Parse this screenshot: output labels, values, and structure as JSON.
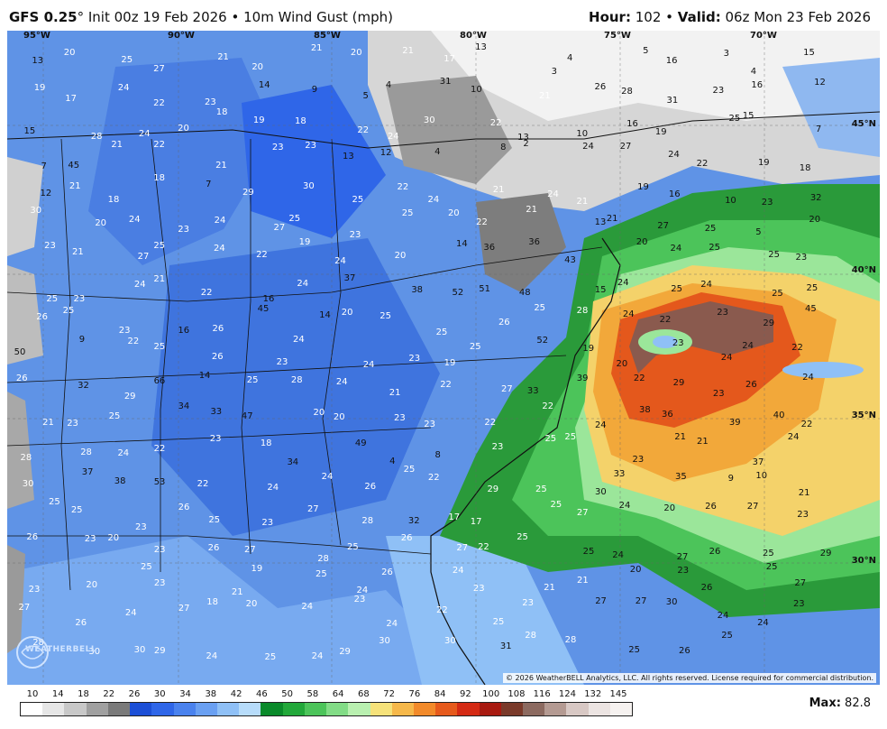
{
  "header": {
    "model": "GFS 0.25",
    "degree": "°",
    "init": "Init 00z 19 Feb 2026",
    "bullet": "•",
    "product": "10m Wind Gust (mph)",
    "hour_label": "Hour:",
    "hour_value": "102",
    "valid_label": "Valid:",
    "valid_value": "06z Mon 23 Feb 2026"
  },
  "grid_labels": {
    "lon_95": "95°W",
    "lon_90": "90°W",
    "lon_85": "85°W",
    "lon_80": "80°W",
    "lon_75": "75°W",
    "lon_70": "70°W",
    "lat_45": "45°N",
    "lat_40": "40°N",
    "lat_35": "35°N",
    "lat_30": "30°N"
  },
  "copyright": "© 2026 WeatherBELL Analytics, LLC. All rights reserved. License required for commercial distribution.",
  "logo_text": "WEATHERBELL",
  "colorbar": {
    "ticks": [
      "10",
      "14",
      "18",
      "22",
      "26",
      "30",
      "34",
      "38",
      "42",
      "46",
      "50",
      "58",
      "64",
      "68",
      "72",
      "76",
      "84",
      "92",
      "100",
      "108",
      "116",
      "124",
      "132",
      "145"
    ],
    "colors": [
      "#ffffff",
      "#e6e6e6",
      "#c8c8c8",
      "#a0a0a0",
      "#7a7a7a",
      "#1c4fd6",
      "#2f66e8",
      "#4a82ee",
      "#6aa0f2",
      "#8fc0f6",
      "#b7dcfa",
      "#0a8a2a",
      "#22a83a",
      "#4cc45a",
      "#82dc86",
      "#b9f0b0",
      "#f6e27a",
      "#f6b84a",
      "#f28a2a",
      "#e65a1c",
      "#d42a14",
      "#a81a10",
      "#7a3a2a",
      "#8c6a60",
      "#b49a92",
      "#d8c8c4",
      "#ece4e2",
      "#f6f2f0"
    ],
    "max_label": "Max:",
    "max_value": "82.8"
  },
  "map_values": [
    {
      "v": "13"
    },
    {
      "v": "20"
    },
    {
      "v": "25"
    },
    {
      "v": "27"
    },
    {
      "v": "21"
    },
    {
      "v": "20"
    },
    {
      "v": "21"
    },
    {
      "v": "20"
    },
    {
      "v": "21"
    },
    {
      "v": "17"
    },
    {
      "v": "13"
    },
    {
      "v": "3"
    },
    {
      "v": "4"
    },
    {
      "v": "5"
    },
    {
      "v": "16"
    },
    {
      "v": "3"
    },
    {
      "v": "4"
    },
    {
      "v": "15"
    },
    {
      "v": "19"
    },
    {
      "v": "17"
    },
    {
      "v": "24"
    },
    {
      "v": "22"
    },
    {
      "v": "23"
    },
    {
      "v": "14"
    },
    {
      "v": "9"
    },
    {
      "v": "5"
    },
    {
      "v": "4"
    },
    {
      "v": "31"
    },
    {
      "v": "10"
    },
    {
      "v": "21"
    },
    {
      "v": "26"
    },
    {
      "v": "28"
    },
    {
      "v": "31"
    },
    {
      "v": "23"
    },
    {
      "v": "16"
    },
    {
      "v": "12"
    },
    {
      "v": "15"
    },
    {
      "v": "28"
    },
    {
      "v": "24"
    },
    {
      "v": "20"
    },
    {
      "v": "18"
    },
    {
      "v": "19"
    },
    {
      "v": "18"
    },
    {
      "v": "22"
    },
    {
      "v": "24"
    },
    {
      "v": "30"
    },
    {
      "v": "22"
    },
    {
      "v": "13"
    },
    {
      "v": "10"
    },
    {
      "v": "16"
    },
    {
      "v": "19"
    },
    {
      "v": "25"
    },
    {
      "v": "15"
    },
    {
      "v": "7"
    },
    {
      "v": "7"
    },
    {
      "v": "45"
    },
    {
      "v": "21"
    },
    {
      "v": "22"
    },
    {
      "v": "21"
    },
    {
      "v": "23"
    },
    {
      "v": "23"
    },
    {
      "v": "13"
    },
    {
      "v": "12"
    },
    {
      "v": "4"
    },
    {
      "v": "8"
    },
    {
      "v": "2"
    },
    {
      "v": "24"
    },
    {
      "v": "27"
    },
    {
      "v": "24"
    },
    {
      "v": "22"
    },
    {
      "v": "19"
    },
    {
      "v": "18"
    },
    {
      "v": "12"
    },
    {
      "v": "21"
    },
    {
      "v": "18"
    },
    {
      "v": "18"
    },
    {
      "v": "7"
    },
    {
      "v": "29"
    },
    {
      "v": "30"
    },
    {
      "v": "25"
    },
    {
      "v": "22"
    },
    {
      "v": "24"
    },
    {
      "v": "21"
    },
    {
      "v": "24"
    },
    {
      "v": "21"
    },
    {
      "v": "19"
    },
    {
      "v": "16"
    },
    {
      "v": "10"
    },
    {
      "v": "23"
    },
    {
      "v": "32"
    },
    {
      "v": "30"
    },
    {
      "v": "20"
    },
    {
      "v": "24"
    },
    {
      "v": "23"
    },
    {
      "v": "24"
    },
    {
      "v": "27"
    },
    {
      "v": "25"
    },
    {
      "v": "23"
    },
    {
      "v": "25"
    },
    {
      "v": "20"
    },
    {
      "v": "22"
    },
    {
      "v": "21"
    },
    {
      "v": "13"
    },
    {
      "v": "21"
    },
    {
      "v": "27"
    },
    {
      "v": "25"
    },
    {
      "v": "5"
    },
    {
      "v": "20"
    },
    {
      "v": "23"
    },
    {
      "v": "21"
    },
    {
      "v": "27"
    },
    {
      "v": "25"
    },
    {
      "v": "24"
    },
    {
      "v": "22"
    },
    {
      "v": "19"
    },
    {
      "v": "24"
    },
    {
      "v": "20"
    },
    {
      "v": "14"
    },
    {
      "v": "36"
    },
    {
      "v": "36"
    },
    {
      "v": "43"
    },
    {
      "v": "20"
    },
    {
      "v": "24"
    },
    {
      "v": "25"
    },
    {
      "v": "25"
    },
    {
      "v": "23"
    },
    {
      "v": "25"
    },
    {
      "v": "23"
    },
    {
      "v": "24"
    },
    {
      "v": "21"
    },
    {
      "v": "22"
    },
    {
      "v": "16"
    },
    {
      "v": "24"
    },
    {
      "v": "37"
    },
    {
      "v": "38"
    },
    {
      "v": "52"
    },
    {
      "v": "51"
    },
    {
      "v": "48"
    },
    {
      "v": "15"
    },
    {
      "v": "24"
    },
    {
      "v": "25"
    },
    {
      "v": "24"
    },
    {
      "v": "25"
    },
    {
      "v": "25"
    },
    {
      "v": "26"
    },
    {
      "v": "25"
    },
    {
      "v": "23"
    },
    {
      "v": "16"
    },
    {
      "v": "26"
    },
    {
      "v": "45"
    },
    {
      "v": "14"
    },
    {
      "v": "20"
    },
    {
      "v": "25"
    },
    {
      "v": "25"
    },
    {
      "v": "26"
    },
    {
      "v": "25"
    },
    {
      "v": "28"
    },
    {
      "v": "24"
    },
    {
      "v": "22"
    },
    {
      "v": "23"
    },
    {
      "v": "29"
    },
    {
      "v": "45"
    },
    {
      "v": "50"
    },
    {
      "v": "9"
    },
    {
      "v": "22"
    },
    {
      "v": "25"
    },
    {
      "v": "26"
    },
    {
      "v": "23"
    },
    {
      "v": "24"
    },
    {
      "v": "24"
    },
    {
      "v": "23"
    },
    {
      "v": "19"
    },
    {
      "v": "25"
    },
    {
      "v": "52"
    },
    {
      "v": "19"
    },
    {
      "v": "20"
    },
    {
      "v": "23"
    },
    {
      "v": "24"
    },
    {
      "v": "24"
    },
    {
      "v": "22"
    },
    {
      "v": "26"
    },
    {
      "v": "32"
    },
    {
      "v": "29"
    },
    {
      "v": "66"
    },
    {
      "v": "14"
    },
    {
      "v": "25"
    },
    {
      "v": "28"
    },
    {
      "v": "24"
    },
    {
      "v": "21"
    },
    {
      "v": "22"
    },
    {
      "v": "27"
    },
    {
      "v": "33"
    },
    {
      "v": "39"
    },
    {
      "v": "22"
    },
    {
      "v": "29"
    },
    {
      "v": "23"
    },
    {
      "v": "26"
    },
    {
      "v": "24"
    },
    {
      "v": "21"
    },
    {
      "v": "23"
    },
    {
      "v": "25"
    },
    {
      "v": "34"
    },
    {
      "v": "33"
    },
    {
      "v": "47"
    },
    {
      "v": "20"
    },
    {
      "v": "20"
    },
    {
      "v": "23"
    },
    {
      "v": "23"
    },
    {
      "v": "22"
    },
    {
      "v": "22"
    },
    {
      "v": "24"
    },
    {
      "v": "38"
    },
    {
      "v": "36"
    },
    {
      "v": "39"
    },
    {
      "v": "40"
    },
    {
      "v": "22"
    },
    {
      "v": "28"
    },
    {
      "v": "28"
    },
    {
      "v": "24"
    },
    {
      "v": "22"
    },
    {
      "v": "23"
    },
    {
      "v": "18"
    },
    {
      "v": "34"
    },
    {
      "v": "49"
    },
    {
      "v": "4"
    },
    {
      "v": "8"
    },
    {
      "v": "23"
    },
    {
      "v": "25"
    },
    {
      "v": "25"
    },
    {
      "v": "23"
    },
    {
      "v": "21"
    },
    {
      "v": "21"
    },
    {
      "v": "37"
    },
    {
      "v": "24"
    },
    {
      "v": "30"
    },
    {
      "v": "37"
    },
    {
      "v": "38"
    },
    {
      "v": "53"
    },
    {
      "v": "22"
    },
    {
      "v": "24"
    },
    {
      "v": "24"
    },
    {
      "v": "26"
    },
    {
      "v": "25"
    },
    {
      "v": "22"
    },
    {
      "v": "29"
    },
    {
      "v": "25"
    },
    {
      "v": "30"
    },
    {
      "v": "33"
    },
    {
      "v": "35"
    },
    {
      "v": "9"
    },
    {
      "v": "10"
    },
    {
      "v": "21"
    },
    {
      "v": "25"
    },
    {
      "v": "25"
    },
    {
      "v": "23"
    },
    {
      "v": "26"
    },
    {
      "v": "25"
    },
    {
      "v": "23"
    },
    {
      "v": "27"
    },
    {
      "v": "28"
    },
    {
      "v": "32"
    },
    {
      "v": "17"
    },
    {
      "v": "17"
    },
    {
      "v": "25"
    },
    {
      "v": "27"
    },
    {
      "v": "24"
    },
    {
      "v": "20"
    },
    {
      "v": "26"
    },
    {
      "v": "27"
    },
    {
      "v": "23"
    },
    {
      "v": "26"
    },
    {
      "v": "23"
    },
    {
      "v": "20"
    },
    {
      "v": "23"
    },
    {
      "v": "26"
    },
    {
      "v": "27"
    },
    {
      "v": "28"
    },
    {
      "v": "25"
    },
    {
      "v": "26"
    },
    {
      "v": "27"
    },
    {
      "v": "22"
    },
    {
      "v": "25"
    },
    {
      "v": "25"
    },
    {
      "v": "24"
    },
    {
      "v": "27"
    },
    {
      "v": "26"
    },
    {
      "v": "25"
    },
    {
      "v": "29"
    },
    {
      "v": "23"
    },
    {
      "v": "20"
    },
    {
      "v": "25"
    },
    {
      "v": "23"
    },
    {
      "v": "21"
    },
    {
      "v": "19"
    },
    {
      "v": "25"
    },
    {
      "v": "24"
    },
    {
      "v": "26"
    },
    {
      "v": "24"
    },
    {
      "v": "23"
    },
    {
      "v": "21"
    },
    {
      "v": "21"
    },
    {
      "v": "20"
    },
    {
      "v": "23"
    },
    {
      "v": "26"
    },
    {
      "v": "25"
    },
    {
      "v": "27"
    },
    {
      "v": "27"
    },
    {
      "v": "26"
    },
    {
      "v": "24"
    },
    {
      "v": "27"
    },
    {
      "v": "18"
    },
    {
      "v": "20"
    },
    {
      "v": "24"
    },
    {
      "v": "23"
    },
    {
      "v": "24"
    },
    {
      "v": "22"
    },
    {
      "v": "25"
    },
    {
      "v": "23"
    },
    {
      "v": "27"
    },
    {
      "v": "27"
    },
    {
      "v": "30"
    },
    {
      "v": "24"
    },
    {
      "v": "24"
    },
    {
      "v": "23"
    },
    {
      "v": "28"
    },
    {
      "v": "30"
    },
    {
      "v": "30"
    },
    {
      "v": "29"
    },
    {
      "v": "24"
    },
    {
      "v": "25"
    },
    {
      "v": "24"
    },
    {
      "v": "29"
    },
    {
      "v": "30"
    },
    {
      "v": "30"
    },
    {
      "v": "31"
    },
    {
      "v": "28"
    },
    {
      "v": "28"
    },
    {
      "v": "25"
    },
    {
      "v": "26"
    },
    {
      "v": "25"
    }
  ]
}
